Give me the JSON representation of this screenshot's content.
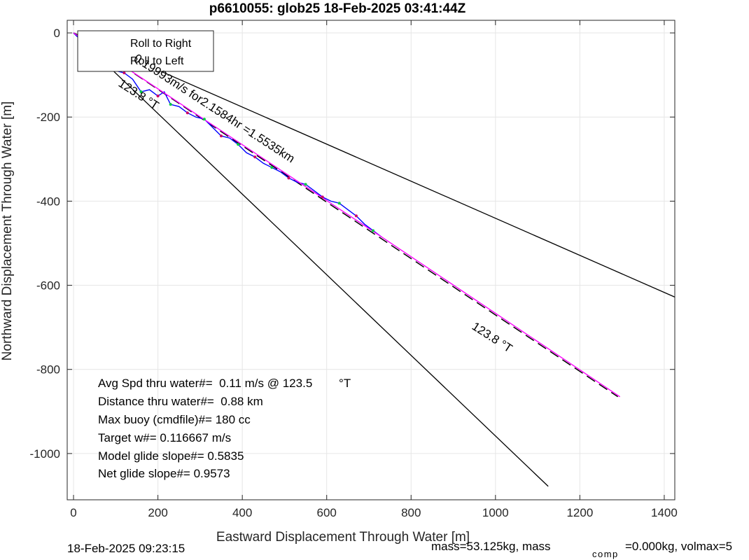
{
  "chart_data": {
    "type": "line",
    "title": "p6610055: glob25 18-Feb-2025 03:41:44Z",
    "xlabel": "Eastward Displacement Through Water [m]",
    "ylabel": "Northward Displacement Through Water [m]",
    "xlim": [
      -15,
      1425
    ],
    "ylim": [
      -1110,
      30
    ],
    "xticks": [
      0,
      200,
      400,
      600,
      800,
      1000,
      1200,
      1400
    ],
    "yticks": [
      0,
      -200,
      -400,
      -600,
      -800,
      -1000
    ],
    "grid": true,
    "legend": {
      "placement": "top-left",
      "entries": [
        "Roll to Right",
        "Roll to Left"
      ]
    },
    "series": [
      {
        "color": "#0000ff",
        "x": [
          0,
          20,
          40,
          60,
          80,
          100,
          120,
          140,
          160,
          180,
          200,
          215,
          230,
          250,
          270,
          290,
          310,
          330,
          350,
          370,
          390,
          410,
          430,
          450,
          470,
          490,
          510,
          530,
          550,
          570,
          590,
          610,
          630,
          650,
          670,
          690,
          710,
          730
        ],
        "y": [
          0,
          -20,
          -40,
          -55,
          -70,
          -90,
          -95,
          -110,
          -140,
          -135,
          -150,
          -140,
          -170,
          -175,
          -190,
          -200,
          -205,
          -225,
          -245,
          -250,
          -265,
          -285,
          -295,
          -310,
          -320,
          -330,
          -345,
          -355,
          -360,
          -375,
          -390,
          -400,
          -405,
          -420,
          -435,
          -455,
          -470,
          -485
        ]
      },
      {
        "color": "#ff00ff",
        "x": [
          0,
          730,
          1295
        ],
        "y": [
          0,
          -485,
          -865
        ]
      }
    ],
    "reference_lines": [
      {
        "x": [
          0,
          1425
        ],
        "y": [
          0,
          -628
        ]
      },
      {
        "x": [
          0,
          1125
        ],
        "y": [
          0,
          -1078
        ]
      },
      {
        "x": [
          0,
          1290
        ],
        "y": [
          0,
          -865
        ],
        "dashed": true
      }
    ],
    "annotations": {
      "heading_upper": "123.8  °T",
      "heading_lower": "123.8  °T",
      "segment": "0.19993m/s for2.1584hr =1.5535km",
      "stats": [
        "Avg Spd thru water#=  0.11 m/s @ 123.5        °T",
        "Distance thru water#=  0.88 km",
        "Max buoy (cmdfile)#= 180 cc",
        "Target w#= 0.116667 m/s",
        "Model glide slope#= 0.5835",
        "Net glide slope#= 0.9573"
      ]
    },
    "footer": {
      "date": "18-Feb-2025 09:23:15",
      "mass_text": "mass=53.125kg, mass",
      "comp_sub": "comp",
      "vol_text": "=0.000kg, volmax=5"
    }
  }
}
